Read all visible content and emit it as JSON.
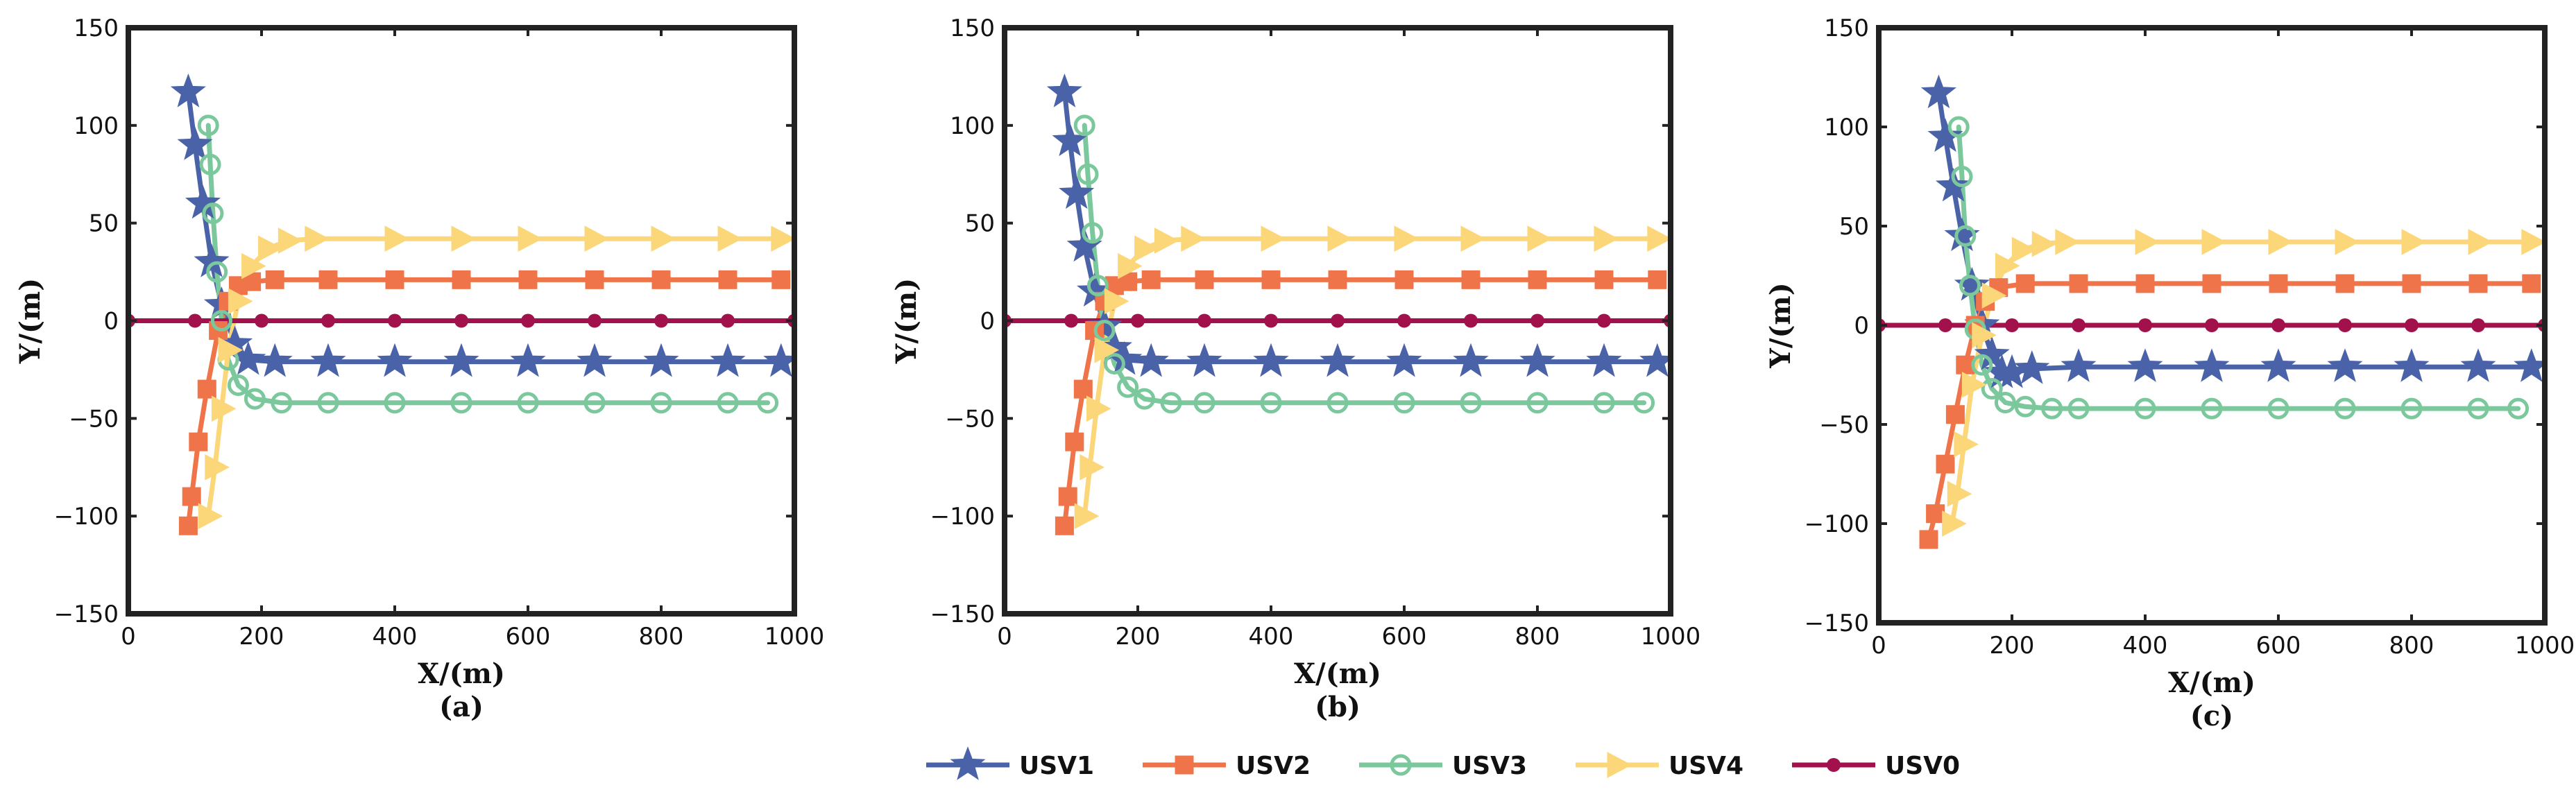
{
  "chart_data": [
    {
      "type": "line",
      "panel_label": "(a)",
      "xlabel": "X/(m)",
      "ylabel": "Y/(m)",
      "xlim": [
        0,
        1000
      ],
      "ylim": [
        -150,
        150
      ],
      "xticks": [
        "0",
        "200",
        "400",
        "600",
        "800",
        "1000"
      ],
      "yticks": [
        "150",
        "100",
        "50",
        "0",
        "−50",
        "−100",
        "−150"
      ],
      "series": [
        {
          "name": "USV1",
          "x": [
            90,
            100,
            112,
            125,
            140,
            160,
            180,
            220,
            300,
            400,
            500,
            600,
            700,
            800,
            900,
            980
          ],
          "y": [
            117,
            90,
            60,
            30,
            8,
            -12,
            -20,
            -21,
            -21,
            -21,
            -21,
            -21,
            -21,
            -21,
            -21,
            -21
          ]
        },
        {
          "name": "USV2",
          "x": [
            90,
            95,
            105,
            118,
            135,
            150,
            165,
            185,
            220,
            300,
            400,
            500,
            600,
            700,
            800,
            900,
            980
          ],
          "y": [
            -105,
            -90,
            -62,
            -35,
            -5,
            10,
            18,
            20,
            21,
            21,
            21,
            21,
            21,
            21,
            21,
            21,
            21
          ]
        },
        {
          "name": "USV3",
          "x": [
            120,
            123,
            127,
            133,
            140,
            150,
            165,
            190,
            230,
            300,
            400,
            500,
            600,
            700,
            800,
            900,
            960
          ],
          "y": [
            100,
            80,
            55,
            25,
            0,
            -20,
            -33,
            -40,
            -42,
            -42,
            -42,
            -42,
            -42,
            -42,
            -42,
            -42,
            -42
          ]
        },
        {
          "name": "USV4",
          "x": [
            120,
            130,
            140,
            150,
            165,
            185,
            210,
            240,
            280,
            400,
            500,
            600,
            700,
            800,
            900,
            980
          ],
          "y": [
            -100,
            -75,
            -45,
            -15,
            10,
            28,
            37,
            41,
            42,
            42,
            42,
            42,
            42,
            42,
            42,
            42
          ]
        },
        {
          "name": "USV0",
          "x": [
            0,
            100,
            200,
            300,
            400,
            500,
            600,
            700,
            800,
            900,
            1000
          ],
          "y": [
            0,
            0,
            0,
            0,
            0,
            0,
            0,
            0,
            0,
            0,
            0
          ]
        }
      ]
    },
    {
      "type": "line",
      "panel_label": "(b)",
      "xlabel": "X/(m)",
      "ylabel": "Y/(m)",
      "xlim": [
        0,
        1000
      ],
      "ylim": [
        -150,
        150
      ],
      "xticks": [
        "0",
        "200",
        "400",
        "600",
        "800",
        "1000"
      ],
      "yticks": [
        "150",
        "100",
        "50",
        "0",
        "−50",
        "−100",
        "−150"
      ],
      "series": [
        {
          "name": "USV1",
          "x": [
            90,
            98,
            108,
            120,
            135,
            150,
            165,
            180,
            220,
            300,
            400,
            500,
            600,
            700,
            800,
            900,
            980
          ],
          "y": [
            117,
            92,
            65,
            38,
            15,
            -3,
            -14,
            -20,
            -21,
            -21,
            -21,
            -21,
            -21,
            -21,
            -21,
            -21,
            -21
          ]
        },
        {
          "name": "USV2",
          "x": [
            90,
            95,
            105,
            118,
            135,
            150,
            165,
            185,
            220,
            300,
            400,
            500,
            600,
            700,
            800,
            900,
            980
          ],
          "y": [
            -105,
            -90,
            -62,
            -35,
            -5,
            10,
            18,
            20,
            21,
            21,
            21,
            21,
            21,
            21,
            21,
            21,
            21
          ]
        },
        {
          "name": "USV3",
          "x": [
            120,
            125,
            132,
            140,
            150,
            165,
            185,
            210,
            250,
            300,
            400,
            500,
            600,
            700,
            800,
            900,
            960
          ],
          "y": [
            100,
            75,
            45,
            18,
            -5,
            -22,
            -34,
            -40,
            -42,
            -42,
            -42,
            -42,
            -42,
            -42,
            -42,
            -42,
            -42
          ]
        },
        {
          "name": "USV4",
          "x": [
            120,
            128,
            138,
            150,
            165,
            185,
            210,
            240,
            280,
            400,
            500,
            600,
            700,
            800,
            900,
            980
          ],
          "y": [
            -100,
            -75,
            -45,
            -15,
            10,
            28,
            37,
            41,
            42,
            42,
            42,
            42,
            42,
            42,
            42,
            42
          ]
        },
        {
          "name": "USV0",
          "x": [
            0,
            100,
            200,
            300,
            400,
            500,
            600,
            700,
            800,
            900,
            1000
          ],
          "y": [
            0,
            0,
            0,
            0,
            0,
            0,
            0,
            0,
            0,
            0,
            0
          ]
        }
      ]
    },
    {
      "type": "line",
      "panel_label": "(c)",
      "xlabel": "X/(m)",
      "ylabel": "Y/(m)",
      "xlim": [
        0,
        1000
      ],
      "ylim": [
        -150,
        150
      ],
      "xticks": [
        "0",
        "200",
        "400",
        "600",
        "800",
        "1000"
      ],
      "yticks": [
        "150",
        "100",
        "50",
        "0",
        "−50",
        "−100",
        "−150"
      ],
      "series": [
        {
          "name": "USV1",
          "x": [
            90,
            100,
            112,
            125,
            140,
            155,
            170,
            185,
            200,
            230,
            300,
            400,
            500,
            600,
            700,
            800,
            900,
            980
          ],
          "y": [
            117,
            95,
            70,
            45,
            20,
            0,
            -15,
            -24,
            -24,
            -22,
            -21,
            -21,
            -21,
            -21,
            -21,
            -21,
            -21,
            -21
          ]
        },
        {
          "name": "USV2",
          "x": [
            75,
            85,
            100,
            115,
            130,
            145,
            160,
            180,
            220,
            300,
            400,
            500,
            600,
            700,
            800,
            900,
            980
          ],
          "y": [
            -108,
            -95,
            -70,
            -45,
            -20,
            0,
            12,
            19,
            21,
            21,
            21,
            21,
            21,
            21,
            21,
            21,
            21
          ]
        },
        {
          "name": "USV3",
          "x": [
            120,
            125,
            130,
            137,
            145,
            155,
            170,
            190,
            220,
            260,
            300,
            400,
            500,
            600,
            700,
            800,
            900,
            960
          ],
          "y": [
            100,
            75,
            45,
            20,
            -2,
            -20,
            -32,
            -39,
            -41,
            -42,
            -42,
            -42,
            -42,
            -42,
            -42,
            -42,
            -42,
            -42
          ]
        },
        {
          "name": "USV4",
          "x": [
            110,
            118,
            128,
            140,
            155,
            170,
            190,
            215,
            245,
            280,
            400,
            500,
            600,
            700,
            800,
            900,
            980
          ],
          "y": [
            -100,
            -85,
            -60,
            -30,
            -5,
            15,
            30,
            38,
            41,
            42,
            42,
            42,
            42,
            42,
            42,
            42,
            42
          ]
        },
        {
          "name": "USV0",
          "x": [
            0,
            100,
            200,
            300,
            400,
            500,
            600,
            700,
            800,
            900,
            1000
          ],
          "y": [
            0,
            0,
            0,
            0,
            0,
            0,
            0,
            0,
            0,
            0,
            0
          ]
        }
      ]
    }
  ],
  "legend": {
    "entries": [
      {
        "name": "USV1",
        "color": "#4a63a8",
        "marker": "star"
      },
      {
        "name": "USV2",
        "color": "#ef7449",
        "marker": "square"
      },
      {
        "name": "USV3",
        "color": "#7bc89d",
        "marker": "circle-open"
      },
      {
        "name": "USV4",
        "color": "#fbd779",
        "marker": "triangle-right"
      },
      {
        "name": "USV0",
        "color": "#a3114d",
        "marker": "dot"
      }
    ]
  }
}
